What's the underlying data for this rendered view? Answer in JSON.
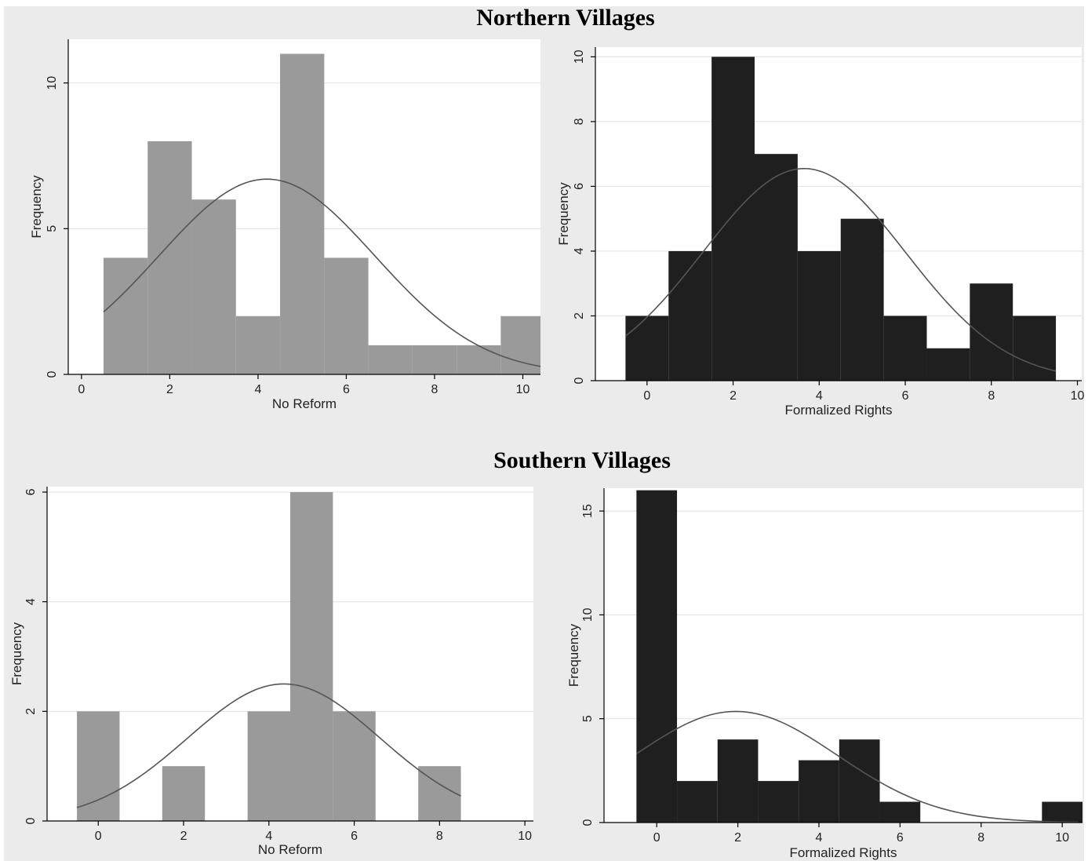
{
  "sections": {
    "north": "Northern Villages",
    "south": "Southern Villages"
  },
  "colors": {
    "background": "#ebebeb",
    "plot_bg": "#ffffff",
    "no_reform_bar": "#9a9a9a",
    "formalized_bar": "#1f1f1f",
    "curve": "#555555",
    "grid": "#e6e6e6"
  },
  "chart_data": [
    {
      "type": "bar",
      "panel": "Northern Villages",
      "xlabel": "No Reform",
      "ylabel": "Frequency",
      "bin_width": 1,
      "bin_centers": [
        1,
        2,
        3,
        4,
        5,
        6,
        7,
        8,
        9,
        10
      ],
      "values": [
        4,
        8,
        6,
        2,
        11,
        4,
        1,
        1,
        1,
        2
      ],
      "xlim": [
        -0.3,
        10.4
      ],
      "ylim": [
        0,
        11.5
      ],
      "xticks": [
        0,
        2,
        4,
        6,
        8,
        10
      ],
      "yticks": [
        0,
        5,
        10
      ],
      "normal_curve": {
        "mean": 4.2,
        "sd": 2.45,
        "peak": 6.7,
        "x_start": 0.5,
        "x_end": 10.4
      },
      "grid": true
    },
    {
      "type": "bar",
      "panel": "Northern Villages",
      "xlabel": "Formalized Rights",
      "ylabel": "Frequency",
      "bin_width": 1,
      "bin_centers": [
        0,
        1,
        2,
        3,
        4,
        5,
        6,
        7,
        8,
        9
      ],
      "values": [
        2,
        4,
        10,
        7,
        4,
        5,
        2,
        1,
        3,
        2
      ],
      "xlim": [
        -1.2,
        10.1
      ],
      "ylim": [
        0,
        10.3
      ],
      "xticks": [
        0,
        2,
        4,
        6,
        8,
        10
      ],
      "yticks": [
        0,
        2,
        4,
        6,
        8,
        10
      ],
      "normal_curve": {
        "mean": 3.65,
        "sd": 2.35,
        "peak": 6.55,
        "x_start": -0.5,
        "x_end": 9.5
      },
      "grid": true
    },
    {
      "type": "bar",
      "panel": "Southern Villages",
      "xlabel": "No Reform",
      "ylabel": "Frequency",
      "bin_width": 1,
      "bin_centers": [
        0,
        2,
        4,
        5,
        6,
        8
      ],
      "values": [
        2,
        1,
        2,
        6,
        2,
        1
      ],
      "xlim": [
        -1.2,
        10.2
      ],
      "ylim": [
        0,
        6.1
      ],
      "xticks": [
        0,
        2,
        4,
        6,
        8,
        10
      ],
      "yticks": [
        0,
        2,
        4,
        6
      ],
      "normal_curve": {
        "mean": 4.35,
        "sd": 2.25,
        "peak": 2.5,
        "x_start": -0.5,
        "x_end": 8.5
      },
      "grid": true
    },
    {
      "type": "bar",
      "panel": "Southern Villages",
      "xlabel": "Formalized Rights",
      "ylabel": "Frequency",
      "bin_width": 1,
      "bin_centers": [
        0,
        1,
        2,
        3,
        4,
        5,
        6,
        10
      ],
      "values": [
        16,
        2,
        4,
        2,
        3,
        4,
        1,
        1
      ],
      "xlim": [
        -1.3,
        10.5
      ],
      "ylim": [
        0,
        16.1
      ],
      "xticks": [
        0,
        2,
        4,
        6,
        8,
        10
      ],
      "yticks": [
        0,
        5,
        10,
        15
      ],
      "normal_curve": {
        "mean": 1.95,
        "sd": 2.5,
        "peak": 5.35,
        "x_start": -0.5,
        "x_end": 10.4
      },
      "grid": true
    }
  ]
}
